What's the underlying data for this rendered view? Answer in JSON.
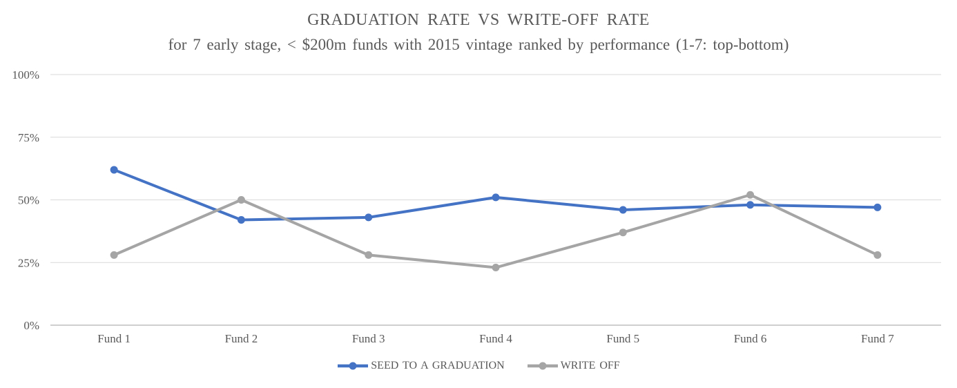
{
  "chart_data": {
    "type": "line",
    "title": "GRADUATION RATE VS WRITE-OFF RATE",
    "subtitle": "for 7 early stage, < $200m funds with 2015 vintage ranked by performance (1-7: top-bottom)",
    "categories": [
      "Fund 1",
      "Fund 2",
      "Fund 3",
      "Fund 4",
      "Fund 5",
      "Fund 6",
      "Fund 7"
    ],
    "series": [
      {
        "name": "SEED TO A GRADUATION",
        "color": "#4472C4",
        "values": [
          62,
          42,
          43,
          51,
          46,
          48,
          47
        ]
      },
      {
        "name": "WRITE OFF",
        "color": "#A5A5A5",
        "values": [
          28,
          50,
          28,
          23,
          37,
          52,
          28
        ]
      }
    ],
    "xlabel": "",
    "ylabel": "",
    "ylim": [
      0,
      100
    ],
    "y_tick_values": [
      0,
      25,
      50,
      75,
      100
    ],
    "y_tick_labels": [
      "0%",
      "25%",
      "50%",
      "75%",
      "100%"
    ],
    "grid": "horizontal",
    "legend_position": "bottom",
    "marker": "circle"
  },
  "colors": {
    "gridline": "#D9D9D9",
    "axis_line": "#BFBFBF",
    "tick_text": "#595959"
  }
}
